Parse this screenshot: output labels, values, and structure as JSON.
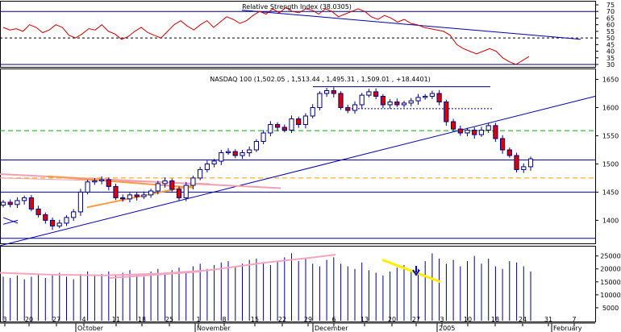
{
  "chart_data": [
    {
      "type": "line",
      "panel": "rsi",
      "title": "Relative Strength Index (38.0305)",
      "y_ticks": [
        "75",
        "70",
        "65",
        "60",
        "55",
        "50",
        "45",
        "40",
        "35",
        "30"
      ],
      "ylim": [
        30,
        75
      ],
      "reference_levels": [
        30,
        50,
        70
      ],
      "colors": {
        "rsi_line": "#cc0000",
        "trendline": "#0000aa",
        "reference": "#000080",
        "midline": "#000000"
      }
    },
    {
      "type": "candlestick",
      "panel": "price",
      "title": "NASDAQ 100 (1,502.05 , 1,513.44 , 1,495.31 , 1,509.01 , +18.4401)",
      "y_ticks": [
        "1650",
        "1600",
        "1550",
        "1500",
        "1450",
        "1400"
      ],
      "ylim": [
        1362,
        1665
      ],
      "horizontal_levels": [
        1450,
        1507,
        1559,
        1475
      ],
      "colors": {
        "up_body": "#ffffff",
        "down_body": "#dd0000",
        "outline": "#000080",
        "trend": "#0000aa",
        "green_dash": "#00aa00",
        "orange_dash": "#ff9900",
        "pink": "#f0a0b0",
        "orange_line": "#ff9944"
      }
    },
    {
      "type": "bar",
      "panel": "volume",
      "y_ticks": [
        "25000",
        "20000",
        "15000",
        "10000",
        "5000"
      ],
      "ylim": [
        0,
        28000
      ],
      "colors": {
        "bars": "#000080",
        "pink_avg": "#f5a5c0",
        "yellow_line": "#ffee00",
        "arrow": "#0000cc"
      }
    }
  ],
  "x_axis": {
    "day_labels": [
      "3",
      "20",
      "27",
      "4",
      "11",
      "18",
      "25",
      "1",
      "8",
      "15",
      "22",
      "29",
      "6",
      "13",
      "20",
      "27",
      "3",
      "10",
      "18",
      "24",
      "31",
      "7"
    ],
    "month_labels": [
      "October",
      "November",
      "December",
      "2005",
      "February"
    ]
  }
}
